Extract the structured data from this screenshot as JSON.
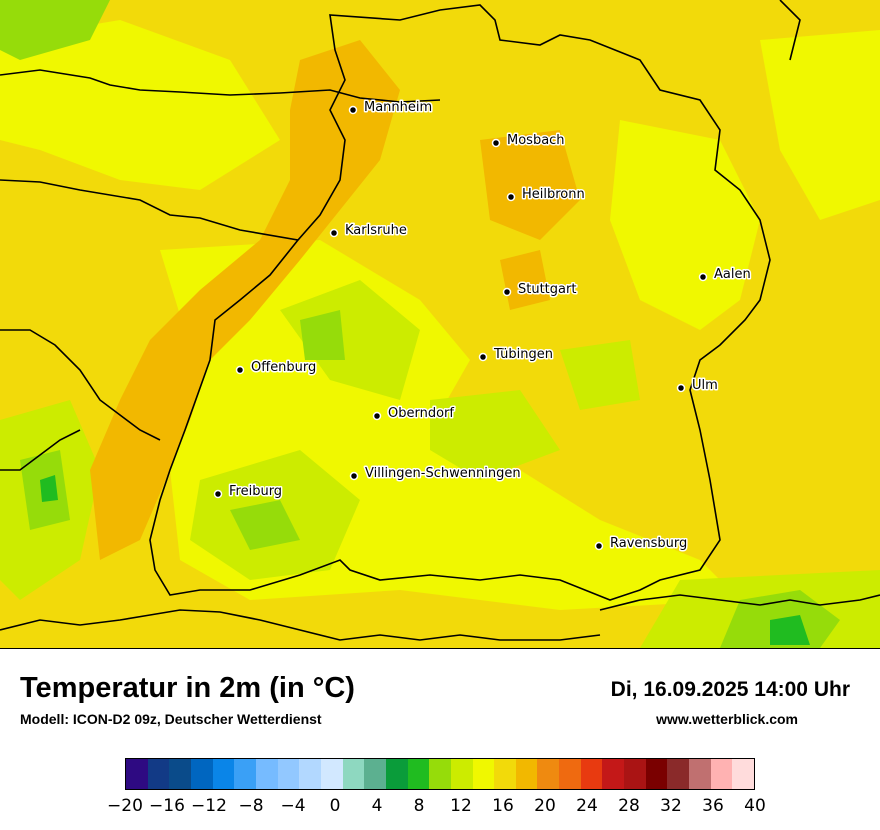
{
  "title": "Temperatur in 2m (in °C)",
  "subtitle": "Modell: ICON-D2 09z, Deutscher Wetterdienst",
  "datetime": "Di, 16.09.2025 14:00 Uhr",
  "website": "www.wetterblick.com",
  "cities": [
    {
      "name": "Mannheim"
    },
    {
      "name": "Mosbach"
    },
    {
      "name": "Heilbronn"
    },
    {
      "name": "Karlsruhe"
    },
    {
      "name": "Aalen"
    },
    {
      "name": "Stuttgart"
    },
    {
      "name": "Tübingen"
    },
    {
      "name": "Offenburg"
    },
    {
      "name": "Ulm"
    },
    {
      "name": "Oberndorf"
    },
    {
      "name": "Villingen-Schwenningen"
    },
    {
      "name": "Freiburg"
    },
    {
      "name": "Ravensburg"
    }
  ],
  "legend": {
    "colors": [
      "#2e0a82",
      "#123a86",
      "#0a4b8a",
      "#0066c0",
      "#0a85e8",
      "#3aa0f6",
      "#76bbff",
      "#92c8ff",
      "#b2d8ff",
      "#d2e8ff",
      "#8ed8c0",
      "#5cb090",
      "#0a9c3a",
      "#20bc20",
      "#96dc0a",
      "#ccec00",
      "#f0f800",
      "#f2da0a",
      "#f2b800",
      "#ef8a10",
      "#ef6a10",
      "#e83a10",
      "#c41818",
      "#aa1414",
      "#7a0000",
      "#8a2a2a",
      "#c07070",
      "#ffb2b2",
      "#ffdcdc"
    ],
    "ticks": [
      "−20",
      "−16",
      "−12",
      "−8",
      "−4",
      "0",
      "4",
      "8",
      "12",
      "16",
      "20",
      "24",
      "28",
      "32",
      "36",
      "40"
    ]
  }
}
